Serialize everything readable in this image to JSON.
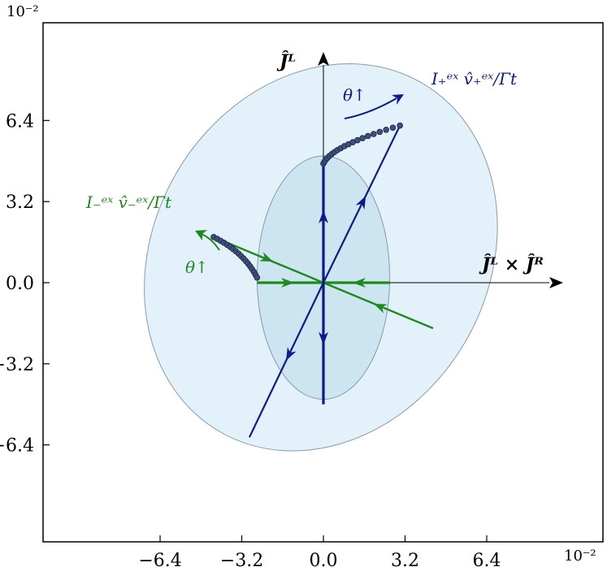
{
  "chart_data": {
    "type": "diagram",
    "xlim": [
      -8.0,
      8.0
    ],
    "ylim": [
      -8.0,
      8.0
    ],
    "x_ticks": [
      -6.4,
      -3.2,
      0.0,
      3.2,
      6.4
    ],
    "y_ticks": [
      -6.4,
      -3.2,
      0.0,
      3.2,
      6.4
    ],
    "x_tick_labels": [
      "−6.4",
      "−3.2",
      "0.0",
      "3.2",
      "6.4"
    ],
    "y_tick_labels": [
      "−6.4",
      "−3.2",
      "0.0",
      "3.2",
      "6.4"
    ],
    "x_exponent": "10⁻²",
    "y_exponent": "10⁻²",
    "horizontal_axis_label": "Ĵᴸ × Ĵᴿ",
    "vertical_axis_label": "Ĵᴸ",
    "colors": {
      "outer_fill": "#e3f1fb",
      "inner_fill": "#cce5f0",
      "ellipse_edge": "#8a9aa6",
      "blue": "#0d1a8a",
      "green": "#1e8a1e",
      "dots": "#3e4f80"
    },
    "outer_ellipse": {
      "cx": -0.1,
      "cy": 1.0,
      "rx": 7.9,
      "ry": 6.6,
      "rotation_deg": 60
    },
    "inner_ellipse": {
      "cx": 0.0,
      "cy": 0.2,
      "rx": 2.6,
      "ry": 4.8,
      "rotation_deg": 0
    },
    "blue_segments": [
      {
        "from": [
          0,
          0
        ],
        "to": [
          0,
          4.7
        ]
      },
      {
        "from": [
          0,
          0
        ],
        "to": [
          0,
          -4.8
        ]
      },
      {
        "from": [
          0,
          0
        ],
        "to": [
          3.0,
          6.2
        ]
      },
      {
        "from": [
          0,
          0
        ],
        "to": [
          -2.9,
          -6.1
        ]
      }
    ],
    "green_segments": [
      {
        "from": [
          0,
          0
        ],
        "to": [
          -2.6,
          0
        ]
      },
      {
        "from": [
          0,
          0
        ],
        "to": [
          2.6,
          0
        ]
      },
      {
        "from": [
          0,
          0
        ],
        "to": [
          -4.3,
          1.8
        ]
      },
      {
        "from": [
          0,
          0
        ],
        "to": [
          4.3,
          -1.8
        ]
      }
    ],
    "blue_arrows": [
      {
        "at": [
          0,
          2.6
        ],
        "dir": [
          0,
          1
        ]
      },
      {
        "at": [
          0,
          -2.2
        ],
        "dir": [
          0,
          -1
        ]
      },
      {
        "at": [
          1.55,
          3.2
        ],
        "dir": [
          0.45,
          0.89
        ]
      },
      {
        "at": [
          -1.35,
          -2.85
        ],
        "dir": [
          -0.45,
          -0.89
        ]
      }
    ],
    "green_arrows": [
      {
        "at": [
          -1.4,
          0
        ],
        "dir": [
          1,
          0
        ]
      },
      {
        "at": [
          1.4,
          0
        ],
        "dir": [
          -1,
          0
        ]
      },
      {
        "at": [
          -2.2,
          0.93
        ],
        "dir": [
          0.92,
          -0.39
        ]
      },
      {
        "at": [
          2.2,
          -0.93
        ],
        "dir": [
          -0.92,
          0.39
        ]
      }
    ],
    "blue_dot_curve": {
      "from": [
        0,
        4.7
      ],
      "control": [
        0.3,
        5.4
      ],
      "to": [
        3.0,
        6.2
      ],
      "count": 20
    },
    "green_dot_curve": {
      "from": [
        -4.3,
        1.8
      ],
      "control": [
        -3.1,
        1.2
      ],
      "to": [
        -2.6,
        0.2
      ],
      "count": 18
    },
    "annotations": {
      "blue_vector": "I₊ᵉˣ v̂₊ᵉˣ/Γt",
      "green_vector": "I₋ᵉˣ v̂₋ᵉˣ/Γt",
      "blue_theta": "θ↑",
      "green_theta": "θ↑"
    }
  }
}
